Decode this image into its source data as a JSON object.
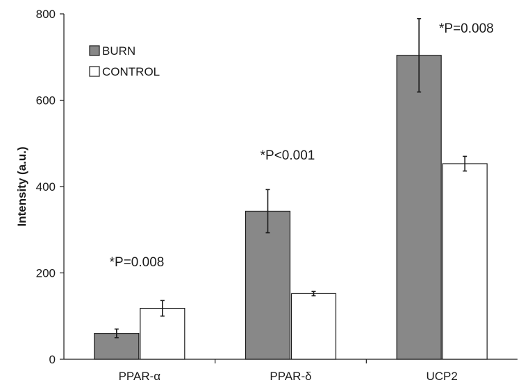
{
  "chart_data": {
    "type": "bar",
    "categories": [
      "PPAR-α",
      "PPAR-δ",
      "UCP2"
    ],
    "series": [
      {
        "name": "BURN",
        "values": [
          60,
          343,
          704
        ],
        "errors": [
          10,
          50,
          85
        ],
        "color": "#888888"
      },
      {
        "name": "CONTROL",
        "values": [
          118,
          152,
          453
        ],
        "errors": [
          18,
          5,
          17
        ],
        "color": "#ffffff"
      }
    ],
    "xlabel": "",
    "ylabel": "Intensity (a.u.)",
    "ylim": [
      0,
      800
    ],
    "yticks": [
      0,
      200,
      400,
      600,
      800
    ],
    "annotations": [
      "*P=0.008",
      "*P<0.001",
      "*P=0.008"
    ],
    "legend_position": "top-left",
    "grid": false
  }
}
